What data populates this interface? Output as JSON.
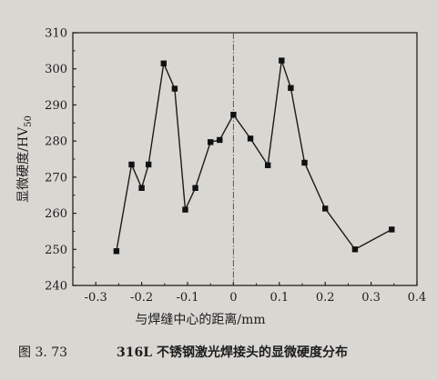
{
  "chart_data": {
    "type": "line",
    "xlabel": "与焊缝中心的距离/mm",
    "ylabel_main": "显微硬度/HV",
    "ylabel_sub": "50",
    "xlim": [
      -0.35,
      0.4
    ],
    "ylim": [
      240,
      310
    ],
    "xticks": [
      -0.3,
      -0.2,
      -0.1,
      0,
      0.1,
      0.2,
      0.3,
      0.4
    ],
    "xtick_labels": [
      "-0.3",
      "-0.2",
      "-0.1",
      "0",
      "0.1",
      "0.2",
      "0.3",
      "0.4"
    ],
    "yticks": [
      240,
      250,
      260,
      270,
      280,
      290,
      300,
      310
    ],
    "ytick_labels": [
      "240",
      "250",
      "260",
      "270",
      "280",
      "290",
      "300",
      "310"
    ],
    "center_line_x": 0,
    "grid": false,
    "series": [
      {
        "points": [
          [
            -0.255,
            249.5
          ],
          [
            -0.222,
            273.5
          ],
          [
            -0.2,
            267.0
          ],
          [
            -0.185,
            273.5
          ],
          [
            -0.152,
            301.5
          ],
          [
            -0.128,
            294.5
          ],
          [
            -0.105,
            261.0
          ],
          [
            -0.083,
            267.0
          ],
          [
            -0.05,
            279.7
          ],
          [
            -0.03,
            280.3
          ],
          [
            0.0,
            287.3
          ],
          [
            0.037,
            280.7
          ],
          [
            0.075,
            273.3
          ],
          [
            0.105,
            302.3
          ],
          [
            0.125,
            294.7
          ],
          [
            0.155,
            274.0
          ],
          [
            0.2,
            261.3
          ],
          [
            0.265,
            250.0
          ],
          [
            0.345,
            255.5
          ]
        ]
      }
    ]
  },
  "caption": {
    "label": "图 3. 73",
    "text": "316L 不锈钢激光焊接头的显微硬度分布"
  }
}
